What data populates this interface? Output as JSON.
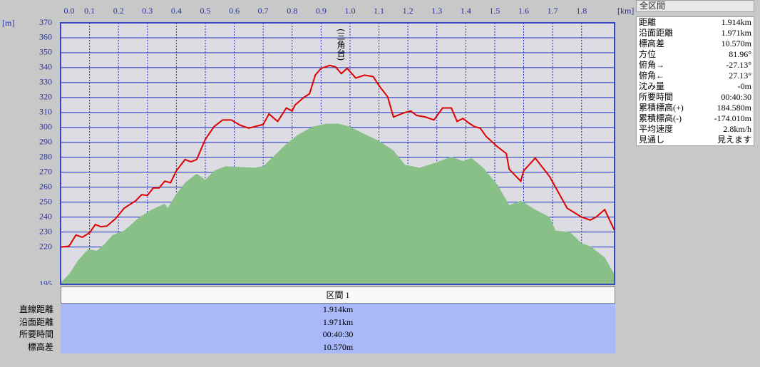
{
  "chart_data": {
    "type": "area-line",
    "y_label": "[m]",
    "x_label": "[km]",
    "annotation": "(三角台)",
    "xlim": [
      0,
      1.914
    ],
    "xticks": [
      {
        "value": 0,
        "label": "0.0"
      },
      0.1,
      0.2,
      0.3,
      0.4,
      0.5,
      0.6,
      0.7,
      0.8,
      0.9,
      {
        "value": 1,
        "label": "1.0"
      },
      1.1,
      1.2,
      1.3,
      1.4,
      1.5,
      1.6,
      1.7,
      1.8
    ],
    "ylim": [
      195,
      370
    ],
    "yticks": [
      195,
      220,
      230,
      240,
      250,
      260,
      270,
      280,
      290,
      300,
      310,
      320,
      330,
      340,
      350,
      360,
      370
    ],
    "grid": true,
    "series": [
      {
        "kind": "area",
        "color": "#88c088",
        "x": [
          0,
          0.03,
          0.06,
          0.095,
          0.125,
          0.15,
          0.18,
          0.22,
          0.27,
          0.31,
          0.36,
          0.37,
          0.4,
          0.43,
          0.47,
          0.5,
          0.53,
          0.57,
          0.67,
          0.7,
          0.73,
          0.78,
          0.82,
          0.87,
          0.92,
          0.96,
          1.0,
          1.05,
          1.1,
          1.15,
          1.19,
          1.24,
          1.29,
          1.35,
          1.39,
          1.42,
          1.46,
          1.51,
          1.55,
          1.59,
          1.64,
          1.69,
          1.71,
          1.76,
          1.8,
          1.83,
          1.88,
          1.914
        ],
        "values": [
          196,
          202,
          211,
          218.5,
          217.5,
          221.5,
          228,
          231,
          239.5,
          244.5,
          249,
          246,
          255.5,
          263,
          269,
          265,
          271,
          274,
          273,
          274,
          279.5,
          289,
          295,
          300.5,
          302.5,
          302.5,
          300.5,
          295.5,
          291,
          284.5,
          275,
          273,
          276,
          280.5,
          277.5,
          279.5,
          273,
          261.5,
          248,
          251,
          245,
          240,
          231,
          230,
          222.5,
          220.5,
          213,
          201.5
        ]
      },
      {
        "kind": "line",
        "color": "#e00000",
        "x": [
          0,
          0.029,
          0.053,
          0.075,
          0.1,
          0.12,
          0.14,
          0.16,
          0.19,
          0.22,
          0.26,
          0.28,
          0.3,
          0.32,
          0.34,
          0.36,
          0.38,
          0.4,
          0.43,
          0.45,
          0.47,
          0.5,
          0.53,
          0.56,
          0.59,
          0.62,
          0.65,
          0.67,
          0.7,
          0.72,
          0.75,
          0.78,
          0.8,
          0.81,
          0.84,
          0.86,
          0.88,
          0.9,
          0.93,
          0.95,
          0.97,
          0.99,
          1.02,
          1.05,
          1.08,
          1.1,
          1.13,
          1.15,
          1.19,
          1.21,
          1.23,
          1.26,
          1.29,
          1.32,
          1.35,
          1.37,
          1.39,
          1.41,
          1.43,
          1.45,
          1.47,
          1.51,
          1.54,
          1.55,
          1.59,
          1.6,
          1.64,
          1.69,
          1.75,
          1.8,
          1.83,
          1.85,
          1.88,
          1.914
        ],
        "values": [
          220,
          220.5,
          228,
          226.5,
          229.5,
          235,
          233.5,
          234,
          239,
          246,
          251,
          255,
          254.5,
          259.5,
          259.5,
          264,
          263,
          271,
          278.5,
          277,
          278.5,
          292,
          300.5,
          305,
          305,
          301.5,
          299.5,
          300.5,
          302,
          309,
          304,
          313,
          311,
          315,
          320,
          322.5,
          335,
          339.5,
          341.5,
          340.5,
          336,
          339.5,
          333,
          335,
          334,
          328,
          320.5,
          307,
          310,
          311,
          308,
          307,
          305,
          313,
          313,
          304,
          306,
          303,
          300.5,
          299.5,
          294,
          287,
          282.5,
          272,
          264,
          271,
          279.5,
          267,
          246,
          240,
          238,
          240,
          245,
          231
        ]
      }
    ]
  },
  "summary_panel": {
    "title": "全区間",
    "rows": [
      [
        "距離",
        "1.914km"
      ],
      [
        "沿面距離",
        "1.971km"
      ],
      [
        "標高差",
        "10.570m"
      ],
      [
        "方位",
        "81.96°"
      ],
      [
        "俯角→",
        "-27.13°"
      ],
      [
        "俯角←",
        "27.13°"
      ],
      [
        "沈み量",
        "-0m"
      ],
      [
        "所要時間",
        "00:40:30"
      ],
      [
        "累積標高(+)",
        "184.580m"
      ],
      [
        "累積標高(-)",
        "-174.010m"
      ],
      [
        "平均速度",
        "2.8km/h"
      ],
      [
        "見通し",
        "見えます"
      ]
    ]
  },
  "section_table": {
    "header": "区間 1",
    "rows": [
      [
        "直線距離",
        "1.914km"
      ],
      [
        "沿面距離",
        "1.971km"
      ],
      [
        "所要時間",
        "00:40:30"
      ],
      [
        "標高差",
        "10.570m"
      ]
    ]
  }
}
